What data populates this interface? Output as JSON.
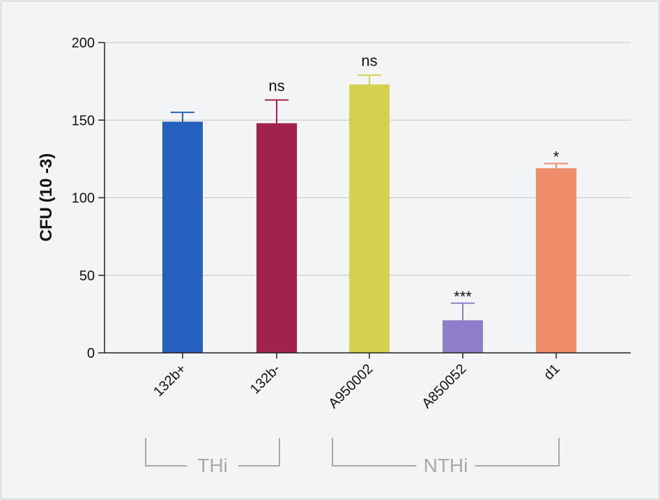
{
  "chart_data": {
    "type": "bar",
    "ylabel": "CFU (10 -3)",
    "ylim": [
      0,
      200
    ],
    "yticks": [
      0,
      50,
      100,
      150,
      200
    ],
    "grid": true,
    "categories": [
      "132b+",
      "132b-",
      "A950002",
      "A850052",
      "d1"
    ],
    "values": [
      149,
      148,
      173,
      21,
      119
    ],
    "errors": [
      6,
      15,
      6,
      11,
      3
    ],
    "colors": [
      "#2660be",
      "#a1224f",
      "#d4d14f",
      "#8e7dcb",
      "#ef8c6a"
    ],
    "significance": [
      "",
      "ns",
      "ns",
      "***",
      "*"
    ],
    "groups": [
      {
        "label": "THi",
        "from": 0,
        "to": 1
      },
      {
        "label": "NTHi",
        "from": 2,
        "to": 4
      }
    ]
  }
}
